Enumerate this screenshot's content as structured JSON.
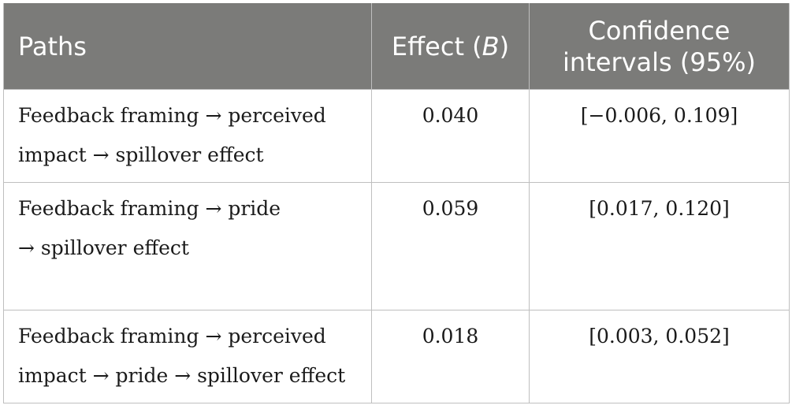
{
  "table": {
    "headers": {
      "paths": "Paths",
      "effect_prefix": "Effect (",
      "effect_symbol": "B",
      "effect_suffix": ")",
      "ci": "Confidence intervals (95%)"
    },
    "rows": [
      {
        "path": "Feedback framing → perceived impact → spillover effect",
        "effect": "0.040",
        "ci": "[−0.006, 0.109]"
      },
      {
        "path": "Feedback framing → pride → spillover effect",
        "effect": "0.059",
        "ci": "[0.017, 0.120]"
      },
      {
        "path": "Feedback framing → perceived impact → pride → spillover effect",
        "effect": "0.018",
        "ci": "[0.003, 0.052]"
      }
    ]
  }
}
